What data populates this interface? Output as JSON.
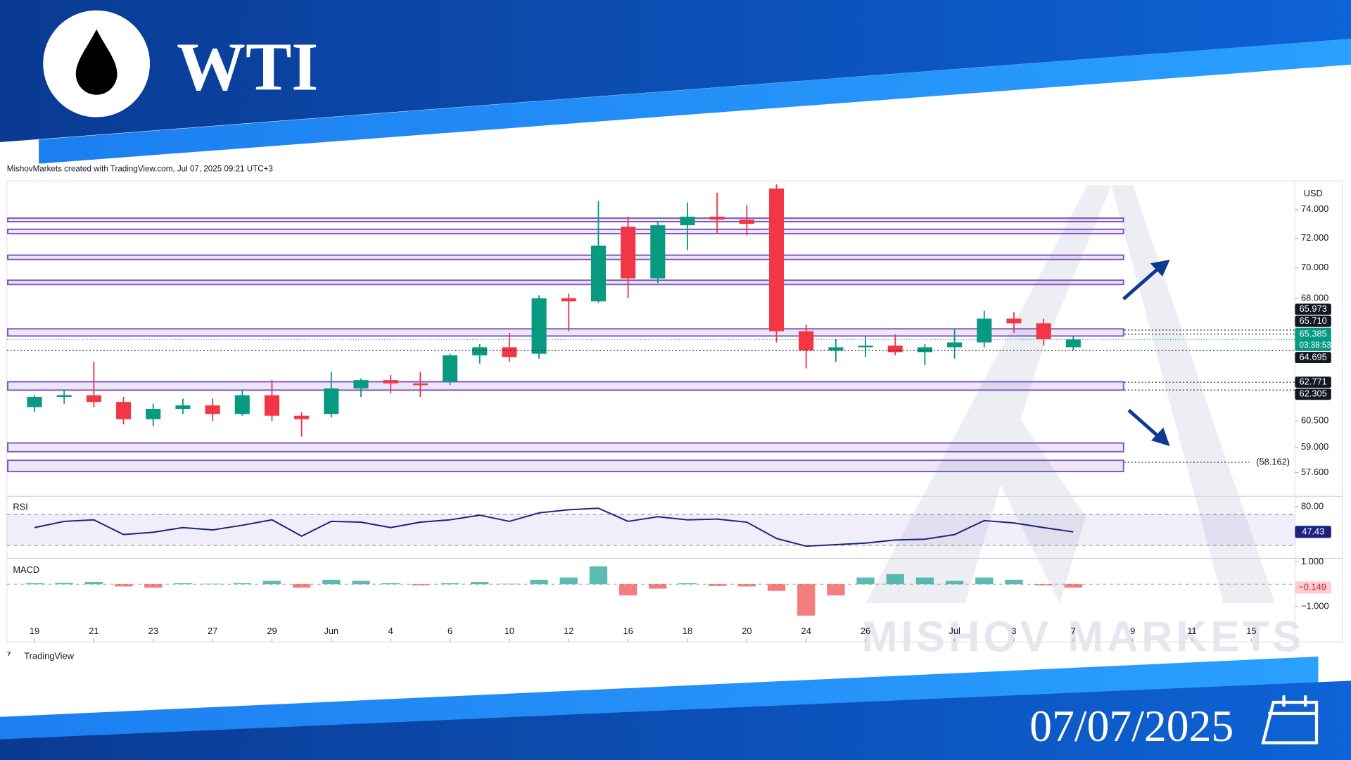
{
  "header": {
    "title": "WTI",
    "date": "07/07/2025"
  },
  "attribution": "MishovMarkets created with TradingView.com, Jul 07, 2025 09:21 UTC+3",
  "brand": "TradingView",
  "watermark": "MISHOV  MARKETS",
  "chart_data": [
    {
      "type": "candlestick",
      "currency": "USD",
      "log_scale": true,
      "up_color": "#089981",
      "down_color": "#f23645",
      "zone_color": "#7e57c2",
      "x": [
        0,
        1,
        2,
        3,
        4,
        5,
        6,
        7,
        8,
        9,
        10,
        11,
        12,
        13,
        14,
        15,
        16,
        17,
        18,
        19,
        20,
        21,
        22,
        23,
        24,
        25,
        26,
        27,
        28,
        29,
        30,
        31,
        32,
        33,
        34,
        35
      ],
      "open": [
        61.3,
        61.9,
        62.0,
        61.6,
        60.6,
        61.2,
        61.4,
        60.9,
        62.0,
        60.8,
        60.9,
        62.4,
        62.9,
        62.7,
        62.8,
        64.4,
        64.9,
        64.5,
        68.0,
        67.8,
        72.8,
        69.3,
        72.9,
        73.5,
        73.3,
        75.5,
        65.9,
        64.7,
        64.9,
        65.0,
        64.6,
        64.9,
        65.2,
        66.7,
        66.4,
        64.9
      ],
      "high": [
        62.0,
        62.3,
        64.0,
        61.9,
        61.5,
        61.8,
        61.8,
        62.3,
        62.9,
        61.0,
        63.4,
        63.0,
        63.2,
        63.4,
        64.5,
        65.1,
        65.8,
        68.2,
        68.3,
        74.6,
        73.5,
        73.2,
        74.5,
        75.2,
        74.3,
        75.8,
        66.3,
        65.4,
        65.6,
        65.7,
        65.1,
        66.0,
        67.2,
        67.1,
        66.7,
        65.6
      ],
      "low": [
        61.0,
        61.5,
        61.3,
        60.3,
        60.2,
        60.9,
        60.5,
        60.8,
        60.5,
        59.6,
        60.7,
        61.9,
        62.1,
        61.9,
        62.6,
        63.9,
        64.0,
        64.2,
        65.9,
        67.7,
        68.0,
        69.0,
        71.2,
        72.3,
        72.2,
        65.2,
        63.6,
        64.0,
        64.3,
        64.4,
        63.8,
        64.2,
        64.9,
        65.8,
        65.0,
        64.7
      ],
      "close": [
        61.9,
        62.0,
        61.6,
        60.6,
        61.2,
        61.4,
        60.9,
        62.0,
        60.8,
        60.6,
        62.4,
        62.9,
        62.7,
        62.6,
        64.4,
        64.9,
        64.3,
        68.0,
        67.8,
        71.5,
        69.3,
        72.9,
        73.5,
        73.3,
        73.0,
        65.9,
        64.7,
        64.9,
        65.0,
        64.6,
        64.9,
        65.2,
        66.7,
        66.4,
        65.4,
        65.385
      ],
      "xlim": [
        -0.93,
        42.47
      ],
      "ylim": [
        56.35,
        75.92
      ],
      "xticks": [
        {
          "value": 0,
          "label": "19"
        },
        {
          "value": 2,
          "label": "21"
        },
        {
          "value": 4,
          "label": "23"
        },
        {
          "value": 6,
          "label": "27"
        },
        {
          "value": 8,
          "label": "29"
        },
        {
          "value": 10,
          "label": "Jun"
        },
        {
          "value": 12,
          "label": "4"
        },
        {
          "value": 14,
          "label": "6"
        },
        {
          "value": 16,
          "label": "10"
        },
        {
          "value": 18,
          "label": "12"
        },
        {
          "value": 20,
          "label": "16"
        },
        {
          "value": 22,
          "label": "18"
        },
        {
          "value": 24,
          "label": "20"
        },
        {
          "value": 26,
          "label": "24"
        },
        {
          "value": 28,
          "label": "26"
        },
        {
          "value": 31,
          "label": "Jul"
        },
        {
          "value": 33,
          "label": "3"
        },
        {
          "value": 35,
          "label": "7"
        },
        {
          "value": 37,
          "label": "9"
        },
        {
          "value": 39,
          "label": "11"
        },
        {
          "value": 41,
          "label": "15"
        }
      ],
      "yticks": [
        {
          "value": 74,
          "label": "74.000"
        },
        {
          "value": 72,
          "label": "72.000"
        },
        {
          "value": 70,
          "label": "70.000"
        },
        {
          "value": 68,
          "label": "68.000"
        },
        {
          "value": 60.5,
          "label": "60.500"
        },
        {
          "value": 59,
          "label": "59.000"
        },
        {
          "value": 57.6,
          "label": "57.600"
        }
      ],
      "zones": [
        [
          73.15,
          73.4
        ],
        [
          72.32,
          72.62
        ],
        [
          70.56,
          70.85
        ],
        [
          68.9,
          69.18
        ],
        [
          65.6,
          66.05
        ],
        [
          62.3,
          62.8
        ],
        [
          58.75,
          59.24
        ],
        [
          57.65,
          58.27
        ]
      ],
      "levels": [
        {
          "value": 65.973,
          "label": "65.973",
          "span": "right"
        },
        {
          "value": 65.71,
          "label": "65.710",
          "span": "right"
        },
        {
          "value": 64.695,
          "label": "64.695",
          "span": "full"
        },
        {
          "value": 62.771,
          "label": "62.771",
          "span": "right"
        },
        {
          "value": 62.305,
          "label": "62.305",
          "span": "right"
        },
        {
          "value": 58.162,
          "label": "(58.162)",
          "span": "plain"
        }
      ],
      "last_price": {
        "value": 65.385,
        "label": "65.385",
        "countdown": "03:38:53"
      }
    },
    {
      "type": "line",
      "title": "RSI",
      "color": "#1a237e",
      "values": [
        53,
        61,
        63,
        44,
        47,
        53,
        50,
        56,
        63,
        42,
        61,
        60,
        53,
        60,
        63,
        69,
        61,
        72,
        76,
        78,
        61,
        67,
        63,
        64,
        60,
        39,
        29,
        31,
        33,
        37,
        38,
        44,
        62,
        59,
        53,
        47.43
      ],
      "ylim": [
        13.3,
        91.1
      ],
      "yticks": [
        {
          "value": 80,
          "label": "80.00"
        }
      ],
      "band": [
        30,
        70
      ],
      "last_value": {
        "value": 47.43,
        "label": "47.43"
      }
    },
    {
      "type": "histogram",
      "title": "MACD",
      "up_color": "#26a69a",
      "down_color": "#ef5350",
      "values": [
        0.05,
        0.06,
        0.1,
        -0.1,
        -0.15,
        0.05,
        0.02,
        0.05,
        0.15,
        -0.15,
        0.2,
        0.15,
        0.05,
        -0.05,
        0.05,
        0.1,
        0.02,
        0.2,
        0.3,
        0.8,
        -0.5,
        -0.2,
        0.05,
        -0.08,
        -0.1,
        -0.3,
        -1.4,
        -0.5,
        0.3,
        0.45,
        0.3,
        0.15,
        0.3,
        0.2,
        -0.05,
        -0.149
      ],
      "ylim": [
        -1.615,
        1.077
      ],
      "yticks": [
        {
          "value": 1,
          "label": "1.000"
        },
        {
          "value": -1,
          "label": "−1.000"
        }
      ],
      "last_value": {
        "value": -0.149,
        "label": "−0.149"
      }
    }
  ]
}
